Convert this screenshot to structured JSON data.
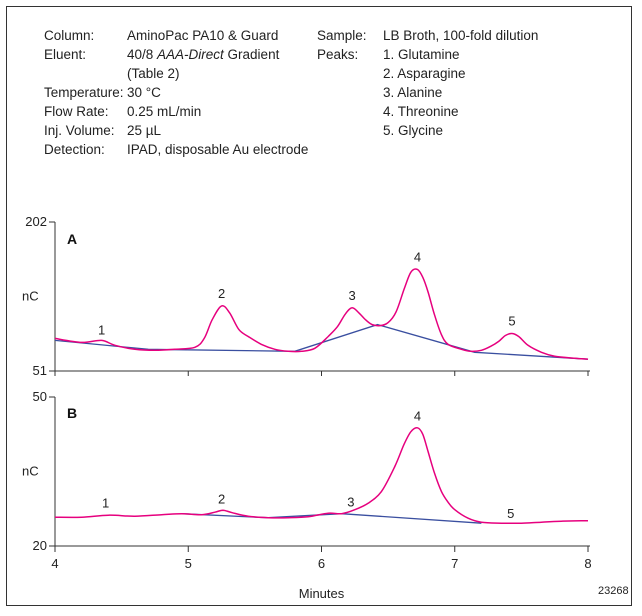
{
  "conditions_left": [
    {
      "label": "Column:",
      "value": "AminoPac PA10 & Guard"
    },
    {
      "label": "Eluent:",
      "value_pre": "40/8 ",
      "value_italic": "AAA-Direct",
      "value_post": " Gradient"
    },
    {
      "label": "",
      "value": "(Table 2)"
    },
    {
      "label": "Temperature:",
      "value": "30 °C"
    },
    {
      "label": "Flow Rate:",
      "value": "0.25 mL/min"
    },
    {
      "label": "Inj. Volume:",
      "value": "25 µL"
    },
    {
      "label": "Detection:",
      "value": "IPAD, disposable Au electrode"
    }
  ],
  "conditions_right": [
    {
      "label": "Sample:",
      "value": "LB Broth, 100-fold dilution"
    },
    {
      "label": "Peaks:",
      "value": "1. Glutamine"
    },
    {
      "label": "",
      "value": "2. Asparagine"
    },
    {
      "label": "",
      "value": "3. Alanine"
    },
    {
      "label": "",
      "value": "4. Threonine"
    },
    {
      "label": "",
      "value": "5. Glycine"
    }
  ],
  "figure_code": "23268",
  "colors": {
    "trace": "#e6007e",
    "baseline": "#3a4fa0",
    "axis": "#333333"
  },
  "chart_data": [
    {
      "type": "line",
      "panel": "A",
      "ylabel": "nC",
      "xlabel": "",
      "ylim": [
        51,
        202
      ],
      "ytick_labels": [
        "202",
        "51"
      ],
      "xlim": [
        4,
        8
      ],
      "series": [
        {
          "x": [
            4.0,
            4.2,
            4.35,
            4.45,
            4.6,
            4.75,
            4.9,
            5.05,
            5.12,
            5.18,
            5.25,
            5.31,
            5.38,
            5.45,
            5.55,
            5.65,
            5.75,
            5.85,
            5.95,
            6.05,
            6.12,
            6.18,
            6.23,
            6.28,
            6.33,
            6.38,
            6.44,
            6.5,
            6.56,
            6.62,
            6.67,
            6.72,
            6.76,
            6.8,
            6.85,
            6.9,
            6.95,
            7.05,
            7.12,
            7.2,
            7.27,
            7.33,
            7.38,
            7.43,
            7.48,
            7.55,
            7.65,
            7.75,
            7.9,
            8.0
          ],
          "y": [
            84,
            80,
            82,
            77,
            73,
            72,
            73,
            75,
            84,
            103,
            117,
            110,
            93,
            86,
            78,
            73,
            71,
            71,
            74,
            86,
            96,
            109,
            115,
            110,
            103,
            98,
            97,
            100,
            111,
            134,
            151,
            154,
            146,
            131,
            107,
            88,
            78,
            73,
            71,
            72,
            76,
            81,
            87,
            89,
            86,
            77,
            70,
            66,
            64,
            63
          ]
        }
      ],
      "baseline_x": [
        4.0,
        4.7,
        5.8,
        6.42,
        7.15,
        8.0
      ],
      "baseline_y": [
        82,
        73,
        71,
        98,
        70,
        63
      ],
      "peak_labels": [
        {
          "label": "1",
          "x": 4.35,
          "y": 88
        },
        {
          "label": "2",
          "x": 5.25,
          "y": 125
        },
        {
          "label": "3",
          "x": 6.23,
          "y": 123
        },
        {
          "label": "4",
          "x": 6.72,
          "y": 162
        },
        {
          "label": "5",
          "x": 7.43,
          "y": 97
        }
      ]
    },
    {
      "type": "line",
      "panel": "B",
      "ylabel": "nC",
      "xlabel": "Minutes",
      "ylim": [
        20,
        50
      ],
      "ytick_labels": [
        "50",
        "20"
      ],
      "xlim": [
        4,
        8
      ],
      "x_ticks": [
        "4",
        "5",
        "6",
        "7",
        "8"
      ],
      "series": [
        {
          "x": [
            4.0,
            4.2,
            4.4,
            4.6,
            4.8,
            4.95,
            5.1,
            5.2,
            5.26,
            5.33,
            5.45,
            5.6,
            5.75,
            5.9,
            6.05,
            6.15,
            6.25,
            6.35,
            6.45,
            6.55,
            6.62,
            6.67,
            6.72,
            6.76,
            6.8,
            6.85,
            6.9,
            6.95,
            7.0,
            7.1,
            7.2,
            7.35,
            7.5,
            7.65,
            7.8,
            8.0
          ],
          "y": [
            25.8,
            25.8,
            26.2,
            26.0,
            26.3,
            26.5,
            26.3,
            26.8,
            27.2,
            26.7,
            26.0,
            25.7,
            25.7,
            25.9,
            26.6,
            26.5,
            27.3,
            28.6,
            31,
            36,
            40.5,
            43,
            43.8,
            42.5,
            39,
            34.5,
            31,
            28.8,
            27.3,
            25.6,
            24.8,
            24.6,
            24.6,
            24.8,
            25.0,
            25.1
          ]
        }
      ],
      "baseline_x": [
        4.95,
        5.6,
        6.15,
        7.2
      ],
      "baseline_y": [
        26.5,
        25.7,
        26.5,
        24.6
      ],
      "peak_labels": [
        {
          "label": "1",
          "x": 4.38,
          "y": 27.8
        },
        {
          "label": "2",
          "x": 5.25,
          "y": 28.6
        },
        {
          "label": "3",
          "x": 6.22,
          "y": 28.0
        },
        {
          "label": "4",
          "x": 6.72,
          "y": 45.3
        },
        {
          "label": "5",
          "x": 7.42,
          "y": 25.6
        }
      ]
    }
  ]
}
